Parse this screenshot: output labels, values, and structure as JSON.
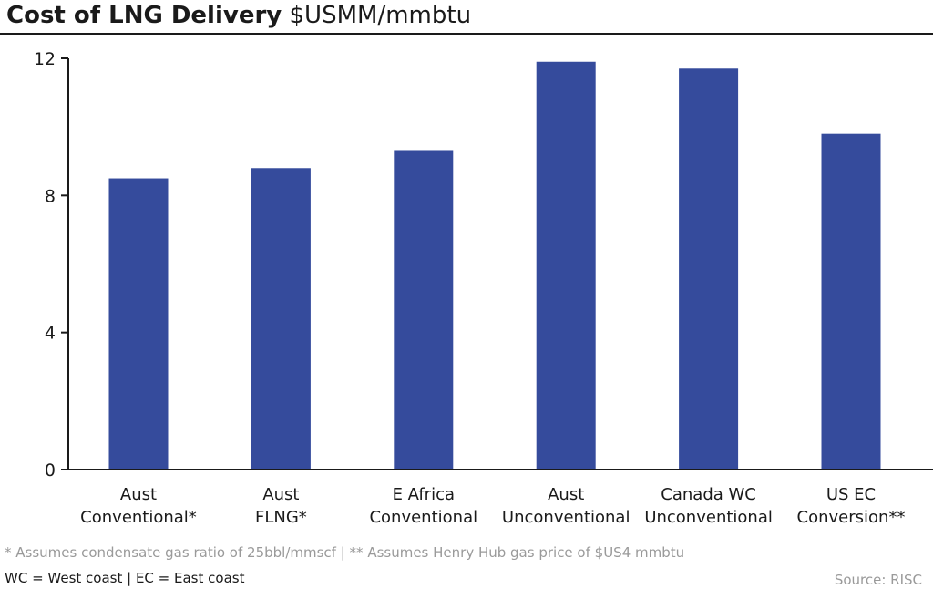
{
  "title": {
    "bold": "Cost of LNG Delivery",
    "unit": "$USMM/mmbtu"
  },
  "chart_data": {
    "type": "bar",
    "categories": [
      [
        "Aust",
        "Conventional*"
      ],
      [
        "Aust",
        "FLNG*"
      ],
      [
        "E Africa",
        "Conventional"
      ],
      [
        "Aust",
        "Unconventional"
      ],
      [
        "Canada WC",
        "Unconventional"
      ],
      [
        "US EC",
        "Conversion**"
      ]
    ],
    "values": [
      8.5,
      8.8,
      9.3,
      11.9,
      11.7,
      9.8
    ],
    "ylim": [
      0,
      12
    ],
    "yticks": [
      0,
      4,
      8,
      12
    ],
    "grid": false,
    "bar_color": "#354b9c"
  },
  "footnotes": {
    "line1": "* Assumes condensate gas ratio of 25bbl/mmscf  |  ** Assumes Henry Hub gas price of $US4 mmbtu",
    "line2": "WC = West coast  |  EC = East coast",
    "source": "Source: RISC"
  }
}
